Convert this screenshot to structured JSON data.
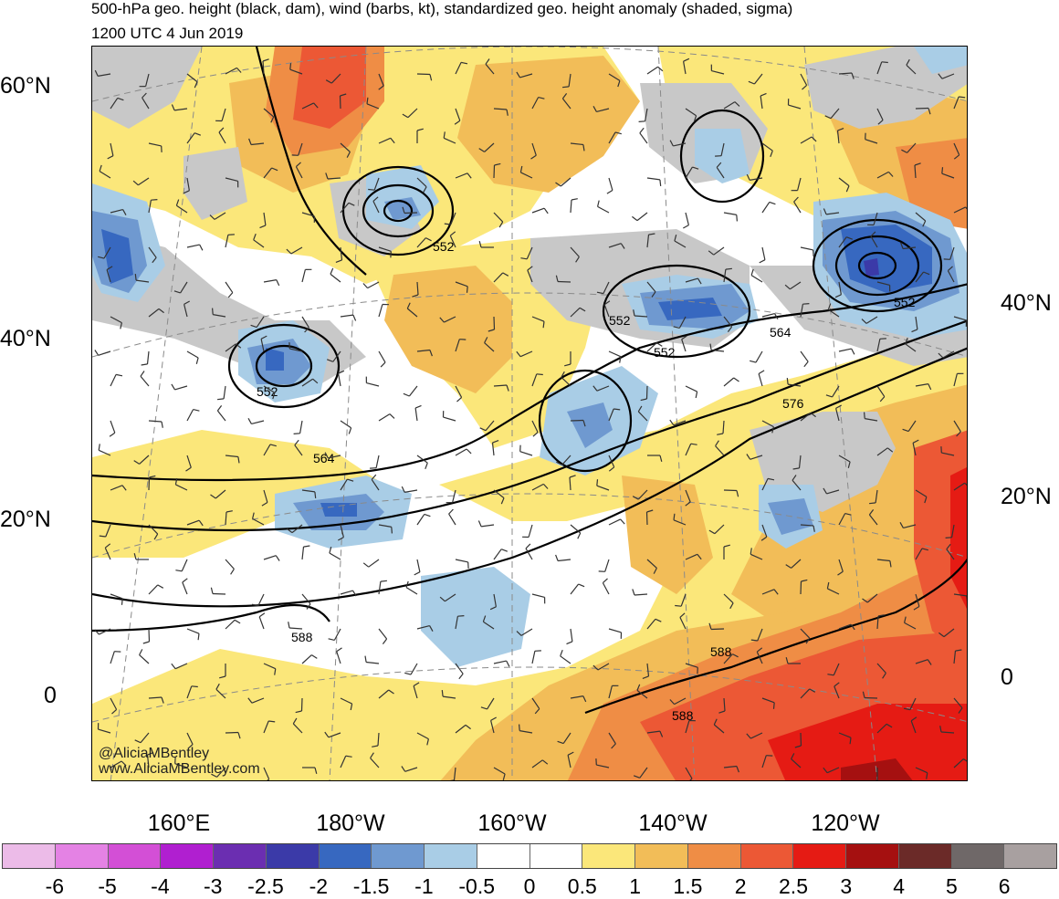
{
  "header": {
    "title": "500-hPa geo. height (black, dam), wind (barbs, kt), standardized geo. height anomaly (shaded, sigma)",
    "subtitle": "1200 UTC 4 Jun 2019"
  },
  "lat_labels_left": [
    "60°N",
    "40°N",
    "20°N",
    "0"
  ],
  "lat_labels_right": [
    "40°N",
    "20°N",
    "0"
  ],
  "lon_labels": [
    "160°E",
    "180°W",
    "160°W",
    "140°W",
    "120°W"
  ],
  "contour_labels": [
    "552",
    "552",
    "552",
    "552",
    "552",
    "564",
    "564",
    "576",
    "588",
    "588",
    "588"
  ],
  "credits": [
    "@AliciaMBentley",
    "www.AliciaMBentley.com"
  ],
  "colorbar": {
    "labels": [
      "-6",
      "-5",
      "-4",
      "-3",
      "-2.5",
      "-2",
      "-1.5",
      "-1",
      "-0.5",
      "0",
      "0.5",
      "1",
      "1.5",
      "2",
      "2.5",
      "3",
      "4",
      "5",
      "6"
    ],
    "colors": [
      "#ecbbe8",
      "#e482e4",
      "#d34fd6",
      "#b01fd0",
      "#6b2eb1",
      "#3b3aa8",
      "#3768c0",
      "#6f99d0",
      "#a9cde6",
      "#ffffff",
      "#ffffff",
      "#fbe77a",
      "#f2bd58",
      "#ef8d45",
      "#ec5835",
      "#e51b14",
      "#a51010",
      "#6b2a28",
      "#6f6868",
      "#a8a0a0"
    ]
  }
}
